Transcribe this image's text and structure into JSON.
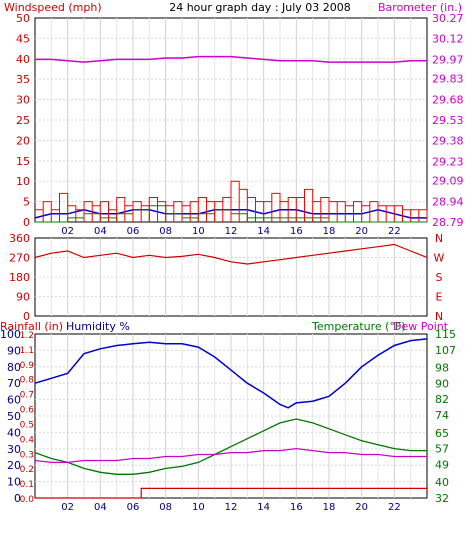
{
  "colors": {
    "windspeed": "#cc0000",
    "gust": "#ff0000",
    "wind_avg": "#0000cc",
    "wind_green": "#008000",
    "barometer": "#cc00cc",
    "direction": "#cc0000",
    "humidity": "#0000cc",
    "temperature": "#007700",
    "dewpoint": "#cc00cc",
    "rainfall": "#cc0000",
    "grid": "#cccccc",
    "axis_text_dark": "#000080"
  },
  "x_ticks": [
    "02",
    "04",
    "06",
    "08",
    "10",
    "12",
    "14",
    "16",
    "18",
    "20",
    "22"
  ],
  "chart_data": [
    {
      "type": "line",
      "title": "24 hour graph day : July 03 2008",
      "ylabel_left": "Windspeed (mph)",
      "ylabel_right": "Barometer (in.)",
      "y_ticks_left": [
        0,
        5,
        10,
        15,
        20,
        25,
        30,
        35,
        40,
        45,
        50
      ],
      "y_ticks_right": [
        "28.79",
        "28.94",
        "29.09",
        "29.23",
        "29.38",
        "29.53",
        "29.68",
        "29.83",
        "29.97",
        "30.12",
        "30.27"
      ],
      "ylim_left": [
        0,
        50
      ],
      "ylim_right": [
        28.79,
        30.27
      ],
      "grid": true,
      "series": [
        {
          "key": "barometer",
          "axis": "right",
          "x": [
            0,
            1,
            2,
            3,
            4,
            5,
            6,
            7,
            8,
            9,
            10,
            11,
            12,
            13,
            14,
            15,
            16,
            17,
            18,
            19,
            20,
            21,
            22,
            23,
            24
          ],
          "values": [
            29.97,
            29.97,
            29.96,
            29.95,
            29.96,
            29.97,
            29.97,
            29.97,
            29.98,
            29.98,
            29.99,
            29.99,
            29.99,
            29.98,
            29.97,
            29.96,
            29.96,
            29.96,
            29.95,
            29.95,
            29.95,
            29.95,
            29.95,
            29.96,
            29.96
          ]
        },
        {
          "key": "wind_avg",
          "axis": "left",
          "x": [
            0,
            1,
            2,
            3,
            4,
            5,
            6,
            7,
            8,
            9,
            10,
            11,
            12,
            13,
            14,
            15,
            16,
            17,
            18,
            19,
            20,
            21,
            22,
            23,
            24
          ],
          "values": [
            1,
            2,
            2,
            3,
            2,
            2,
            3,
            3,
            2,
            2,
            2,
            3,
            3,
            3,
            2,
            3,
            3,
            2,
            2,
            2,
            2,
            3,
            2,
            1,
            1
          ]
        },
        {
          "key": "wind_green",
          "axis": "left",
          "x": [
            0,
            1,
            2,
            3,
            4,
            5,
            6,
            7,
            8,
            9,
            10,
            11,
            12,
            13,
            14,
            15,
            16,
            17,
            18,
            19,
            20,
            21,
            22,
            23,
            24
          ],
          "values": [
            0,
            0,
            1,
            2,
            1,
            2,
            3,
            4,
            2,
            1,
            2,
            3,
            2,
            1,
            1,
            1,
            1,
            1,
            0,
            0,
            0,
            0,
            0,
            0,
            0
          ]
        },
        {
          "key": "gust",
          "axis": "left",
          "x": [
            0,
            0.5,
            1,
            1.5,
            2,
            2.5,
            3,
            3.5,
            4,
            4.5,
            5,
            5.5,
            6,
            6.5,
            7,
            7.5,
            8,
            8.5,
            9,
            9.5,
            10,
            10.5,
            11,
            11.5,
            12,
            12.5,
            13,
            13.5,
            14,
            14.5,
            15,
            15.5,
            16,
            16.5,
            17,
            17.5,
            18,
            18.5,
            19,
            19.5,
            20,
            20.5,
            21,
            21.5,
            22,
            22.5,
            23,
            23.5,
            24
          ],
          "values": [
            3,
            5,
            3,
            7,
            4,
            3,
            5,
            4,
            5,
            3,
            6,
            4,
            5,
            4,
            6,
            5,
            4,
            5,
            4,
            5,
            6,
            5,
            5,
            6,
            10,
            8,
            6,
            5,
            5,
            7,
            5,
            6,
            6,
            8,
            5,
            6,
            5,
            5,
            4,
            5,
            4,
            5,
            4,
            4,
            4,
            3,
            3,
            3,
            3
          ]
        }
      ]
    },
    {
      "type": "line",
      "ylabel_right": [
        "N",
        "W",
        "S",
        "E",
        "N"
      ],
      "y_ticks_left": [
        0,
        90,
        180,
        270,
        360
      ],
      "ylim_left": [
        0,
        360
      ],
      "grid": true,
      "series": [
        {
          "key": "direction",
          "x": [
            0,
            1,
            2,
            3,
            4,
            5,
            6,
            7,
            8,
            9,
            10,
            11,
            12,
            13,
            14,
            15,
            16,
            17,
            18,
            19,
            20,
            21,
            22,
            23,
            24
          ],
          "values": [
            270,
            290,
            300,
            270,
            280,
            290,
            270,
            280,
            270,
            275,
            285,
            270,
            250,
            240,
            250,
            260,
            270,
            280,
            290,
            300,
            310,
            320,
            330,
            300,
            270
          ]
        }
      ]
    },
    {
      "type": "line",
      "ylabel_left_rain": "Rainfall (in)",
      "ylabel_left_humidity": "Humidity %",
      "ylabel_right_temp": "Temperature (°F)",
      "ylabel_right_dew": "Dew Point",
      "y_ticks_humidity": [
        0,
        10,
        20,
        30,
        40,
        50,
        60,
        70,
        80,
        90,
        100
      ],
      "y_ticks_rain": [
        "0.0",
        "0.1",
        "0.2",
        "0.3",
        "0.4",
        "0.5",
        "0.6",
        "0.7",
        "0.8",
        "0.9",
        "1.1",
        "1.2"
      ],
      "y_ticks_temp": [
        32,
        40,
        49,
        57,
        65,
        74,
        82,
        90,
        98,
        107,
        115
      ],
      "ylim_humidity": [
        0,
        100
      ],
      "ylim_temp": [
        32,
        115
      ],
      "grid": true,
      "series": [
        {
          "key": "humidity",
          "axis": "humidity",
          "x": [
            0,
            1,
            2,
            3,
            4,
            5,
            6,
            7,
            8,
            9,
            10,
            11,
            12,
            13,
            14,
            15,
            15.5,
            16,
            17,
            18,
            19,
            20,
            21,
            22,
            23,
            24
          ],
          "values": [
            70,
            73,
            76,
            88,
            91,
            93,
            94,
            95,
            94,
            94,
            92,
            86,
            78,
            70,
            64,
            57,
            55,
            58,
            59,
            62,
            70,
            80,
            87,
            93,
            96,
            97
          ]
        },
        {
          "key": "temperature",
          "axis": "temp",
          "x": [
            0,
            1,
            2,
            3,
            4,
            5,
            6,
            7,
            8,
            9,
            10,
            11,
            12,
            13,
            14,
            15,
            16,
            17,
            18,
            19,
            20,
            21,
            22,
            23,
            24
          ],
          "values": [
            55,
            52,
            50,
            47,
            45,
            44,
            44,
            45,
            47,
            48,
            50,
            54,
            58,
            62,
            66,
            70,
            72,
            70,
            67,
            64,
            61,
            59,
            57,
            56,
            56
          ]
        },
        {
          "key": "dewpoint",
          "axis": "temp",
          "x": [
            0,
            1,
            2,
            3,
            4,
            5,
            6,
            7,
            8,
            9,
            10,
            11,
            12,
            13,
            14,
            15,
            16,
            17,
            18,
            19,
            20,
            21,
            22,
            23,
            24
          ],
          "values": [
            51,
            50,
            50,
            51,
            51,
            51,
            52,
            52,
            53,
            53,
            54,
            54,
            55,
            55,
            56,
            56,
            57,
            56,
            55,
            55,
            54,
            54,
            53,
            53,
            53
          ]
        },
        {
          "key": "rainfall",
          "axis": "rain",
          "x": [
            0,
            6.5,
            6.5,
            24
          ],
          "values": [
            0,
            0,
            0.07,
            0.07
          ]
        }
      ]
    }
  ]
}
